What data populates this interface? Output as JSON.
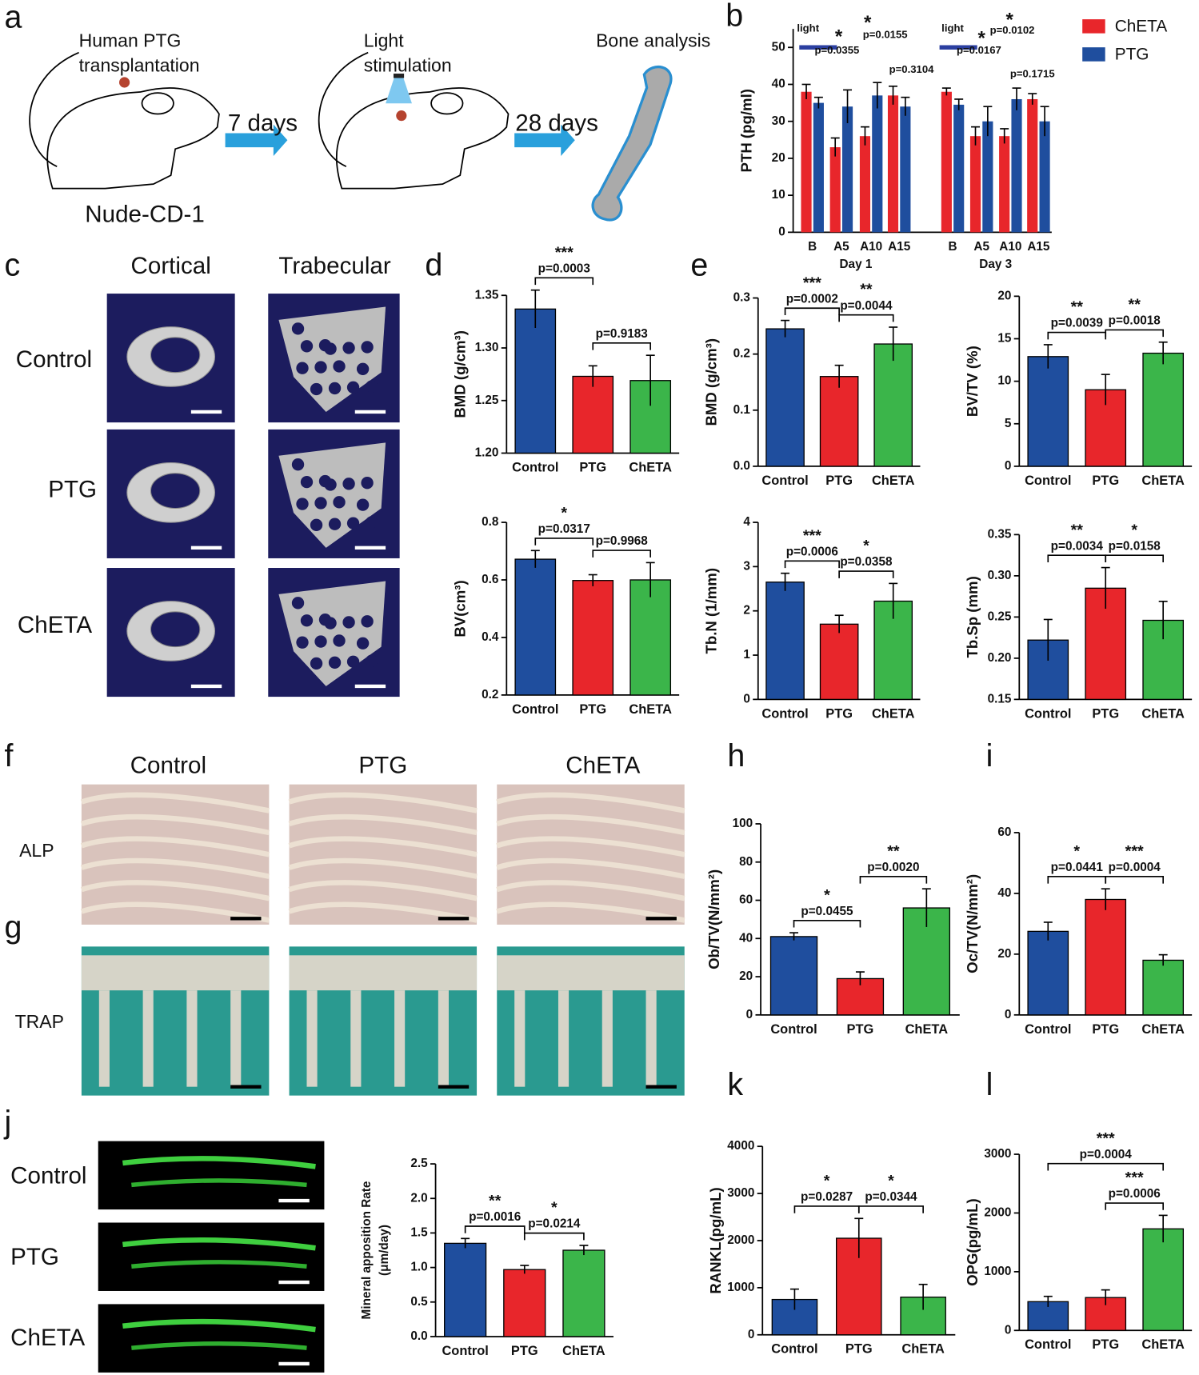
{
  "panel_letters": [
    "a",
    "b",
    "c",
    "d",
    "e",
    "f",
    "g",
    "h",
    "i",
    "j",
    "k",
    "l"
  ],
  "panel_a": {
    "transplant_label": [
      "Human PTG",
      "transplantation"
    ],
    "interval1": "7 days",
    "light_label": [
      "Light",
      "stimulation"
    ],
    "interval2": "28 days",
    "analysis_label": "Bone analysis",
    "strain": "Nude-CD-1"
  },
  "panel_c": {
    "columns": [
      "Cortical",
      "Trabecular"
    ],
    "rows": [
      "Control",
      "PTG",
      "ChETA"
    ]
  },
  "panel_fg": {
    "columns": [
      "Control",
      "PTG",
      "ChETA"
    ],
    "rows": [
      "ALP",
      "TRAP"
    ]
  },
  "panel_j": {
    "rows": [
      "Control",
      "PTG",
      "ChETA"
    ]
  },
  "chart_data": [
    {
      "type": "grouped-bar",
      "ylabel": "PTH (pg/ml)",
      "categories": [
        "B",
        "A5",
        "A10",
        "A15",
        "B",
        "A5",
        "A10",
        "A15"
      ],
      "groups": [
        "Day 1",
        "Day 3"
      ],
      "series": [
        {
          "name": "ChETA",
          "color": "#e8262b",
          "values": [
            38,
            23,
            26,
            37,
            38,
            26,
            26,
            36
          ],
          "errors": [
            2,
            2.5,
            2.5,
            2.5,
            1,
            2.5,
            2,
            1.5
          ]
        },
        {
          "name": "PTG",
          "color": "#1f4e9e",
          "values": [
            35,
            34,
            37,
            34,
            34.5,
            30,
            36,
            30
          ],
          "errors": [
            1.5,
            4.5,
            3.5,
            2.5,
            1.5,
            4,
            3,
            4
          ]
        }
      ],
      "ylim": [
        0,
        55
      ],
      "yticks": [
        0,
        10,
        20,
        30,
        40,
        50
      ],
      "legend": "right",
      "annotations": [
        "light",
        "p=0.0355",
        "*",
        "*",
        "p=0.0155",
        "p=0.3104",
        "light",
        "p=0.0167",
        "*",
        "*",
        "p=0.0102",
        "p=0.1715"
      ]
    },
    {
      "type": "bar",
      "ylabel": "BMD (g/cm³)",
      "categories": [
        "Control",
        "PTG",
        "ChETA"
      ],
      "colors": [
        "#1f4e9e",
        "#e8262b",
        "#3bb54a"
      ],
      "values": [
        1.337,
        1.273,
        1.269
      ],
      "errors": [
        0.018,
        0.01,
        0.024
      ],
      "ylim": [
        1.2,
        1.35
      ],
      "yticks": [
        {
          "value": 1.2,
          "label": "1.20"
        },
        1.25,
        {
          "value": 1.3,
          "label": "1.30"
        },
        1.35
      ],
      "comparisons": [
        {
          "stars": "***",
          "label": "p=0.0003"
        },
        {
          "label": "p=0.9183"
        }
      ]
    },
    {
      "type": "bar",
      "ylabel": "BV(cm³)",
      "categories": [
        "Control",
        "PTG",
        "ChETA"
      ],
      "colors": [
        "#1f4e9e",
        "#e8262b",
        "#3bb54a"
      ],
      "values": [
        0.672,
        0.598,
        0.6
      ],
      "errors": [
        0.03,
        0.02,
        0.06
      ],
      "ylim": [
        0.2,
        0.8
      ],
      "yticks": [
        0.2,
        0.4,
        0.6,
        0.8
      ],
      "comparisons": [
        {
          "stars": "*",
          "label": "p=0.0317"
        },
        {
          "label": "p=0.9968"
        }
      ]
    },
    {
      "type": "bar",
      "ylabel": "BMD (g/cm³)",
      "categories": [
        "Control",
        "PTG",
        "ChETA"
      ],
      "colors": [
        "#1f4e9e",
        "#e8262b",
        "#3bb54a"
      ],
      "values": [
        0.245,
        0.16,
        0.218
      ],
      "errors": [
        0.015,
        0.02,
        0.03
      ],
      "ylim": [
        0,
        0.3
      ],
      "yticks": [
        {
          "value": 0,
          "label": "0.0"
        },
        0.1,
        0.2,
        0.3
      ],
      "comparisons": [
        {
          "stars": "***",
          "label": "p=0.0002"
        },
        {
          "stars": "**",
          "label": "p=0.0044"
        }
      ]
    },
    {
      "type": "bar",
      "ylabel": "BV/TV (%)",
      "categories": [
        "Control",
        "PTG",
        "ChETA"
      ],
      "colors": [
        "#1f4e9e",
        "#e8262b",
        "#3bb54a"
      ],
      "values": [
        12.9,
        9,
        13.3
      ],
      "errors": [
        1.4,
        1.8,
        1.3
      ],
      "ylim": [
        0,
        20
      ],
      "yticks": [
        0,
        5,
        10,
        15,
        20
      ],
      "comparisons": [
        {
          "stars": "**",
          "label": "p=0.0039"
        },
        {
          "stars": "**",
          "label": "p=0.0018"
        }
      ]
    },
    {
      "type": "bar",
      "ylabel": "Tb.N (1/mm)",
      "categories": [
        "Control",
        "PTG",
        "ChETA"
      ],
      "colors": [
        "#1f4e9e",
        "#e8262b",
        "#3bb54a"
      ],
      "values": [
        2.65,
        1.7,
        2.22
      ],
      "errors": [
        0.2,
        0.2,
        0.4
      ],
      "ylim": [
        0,
        4
      ],
      "yticks": [
        0,
        1,
        2,
        3,
        4
      ],
      "comparisons": [
        {
          "stars": "***",
          "label": "p=0.0006"
        },
        {
          "stars": "*",
          "label": "p=0.0358"
        }
      ]
    },
    {
      "type": "bar",
      "ylabel": "Tb.Sp (mm)",
      "categories": [
        "Control",
        "PTG",
        "ChETA"
      ],
      "colors": [
        "#1f4e9e",
        "#e8262b",
        "#3bb54a"
      ],
      "values": [
        0.222,
        0.285,
        0.246
      ],
      "errors": [
        0.025,
        0.025,
        0.023
      ],
      "ylim": [
        0.15,
        0.35
      ],
      "yticks": [
        0.15,
        {
          "value": 0.2,
          "label": "0.20"
        },
        0.25,
        {
          "value": 0.3,
          "label": "0.30"
        },
        0.35
      ],
      "comparisons": [
        {
          "stars": "**",
          "label": "p=0.0034"
        },
        {
          "stars": "*",
          "label": "p=0.0158"
        }
      ]
    },
    {
      "type": "bar",
      "ylabel": "Ob/TV(N/mm²)",
      "categories": [
        "Control",
        "PTG",
        "ChETA"
      ],
      "colors": [
        "#1f4e9e",
        "#e8262b",
        "#3bb54a"
      ],
      "values": [
        41,
        19,
        56
      ],
      "errors": [
        2,
        3.5,
        10
      ],
      "ylim": [
        0,
        100
      ],
      "yticks": [
        0,
        20,
        40,
        60,
        80,
        100
      ],
      "comparisons": [
        {
          "stars": "*",
          "label": "p=0.0455"
        },
        {
          "stars": "**",
          "label": "p=0.0020"
        }
      ]
    },
    {
      "type": "bar",
      "ylabel": "Oc/TV(N/mm²)",
      "categories": [
        "Control",
        "PTG",
        "ChETA"
      ],
      "colors": [
        "#1f4e9e",
        "#e8262b",
        "#3bb54a"
      ],
      "values": [
        27.5,
        38,
        18
      ],
      "errors": [
        3,
        3.5,
        1.8
      ],
      "ylim": [
        0,
        60
      ],
      "yticks": [
        0,
        20,
        40,
        60
      ],
      "comparisons": [
        {
          "stars": "*",
          "label": "p=0.0441"
        },
        {
          "stars": "***",
          "label": "p=0.0004"
        }
      ]
    },
    {
      "type": "bar",
      "ylabel": [
        "Mineral apposition Rate",
        "(μm/day)"
      ],
      "categories": [
        "Control",
        "PTG",
        "ChETA"
      ],
      "colors": [
        "#1f4e9e",
        "#e8262b",
        "#3bb54a"
      ],
      "values": [
        1.35,
        0.97,
        1.25
      ],
      "errors": [
        0.07,
        0.06,
        0.07
      ],
      "ylim": [
        0,
        2.5
      ],
      "yticks": [
        {
          "value": 0,
          "label": "0.0"
        },
        0.5,
        {
          "value": 1,
          "label": "1.0"
        },
        1.5,
        {
          "value": 2,
          "label": "2.0"
        },
        2.5
      ],
      "comparisons": [
        {
          "stars": "**",
          "label": "p=0.0016"
        },
        {
          "stars": "*",
          "label": "p=0.0214"
        }
      ]
    },
    {
      "type": "bar",
      "ylabel": "RANKL(pg/mL)",
      "categories": [
        "Control",
        "PTG",
        "ChETA"
      ],
      "colors": [
        "#1f4e9e",
        "#e8262b",
        "#3bb54a"
      ],
      "values": [
        750,
        2050,
        800
      ],
      "errors": [
        220,
        420,
        270
      ],
      "ylim": [
        0,
        4000
      ],
      "yticks": [
        0,
        1000,
        2000,
        3000,
        4000
      ],
      "comparisons": [
        {
          "stars": "*",
          "label": "p=0.0287"
        },
        {
          "stars": "*",
          "label": "p=0.0344"
        }
      ]
    },
    {
      "type": "bar",
      "ylabel": "OPG(pg/mL)",
      "categories": [
        "Control",
        "PTG",
        "ChETA"
      ],
      "colors": [
        "#1f4e9e",
        "#e8262b",
        "#3bb54a"
      ],
      "values": [
        490,
        560,
        1730
      ],
      "errors": [
        90,
        130,
        230
      ],
      "ylim": [
        0,
        3000
      ],
      "yticks": [
        0,
        1000,
        2000,
        3000
      ],
      "comparisons": [
        {
          "stars": "***",
          "label": "p=0.0004"
        },
        {
          "stars": "***",
          "label": "p=0.0006"
        }
      ]
    }
  ]
}
